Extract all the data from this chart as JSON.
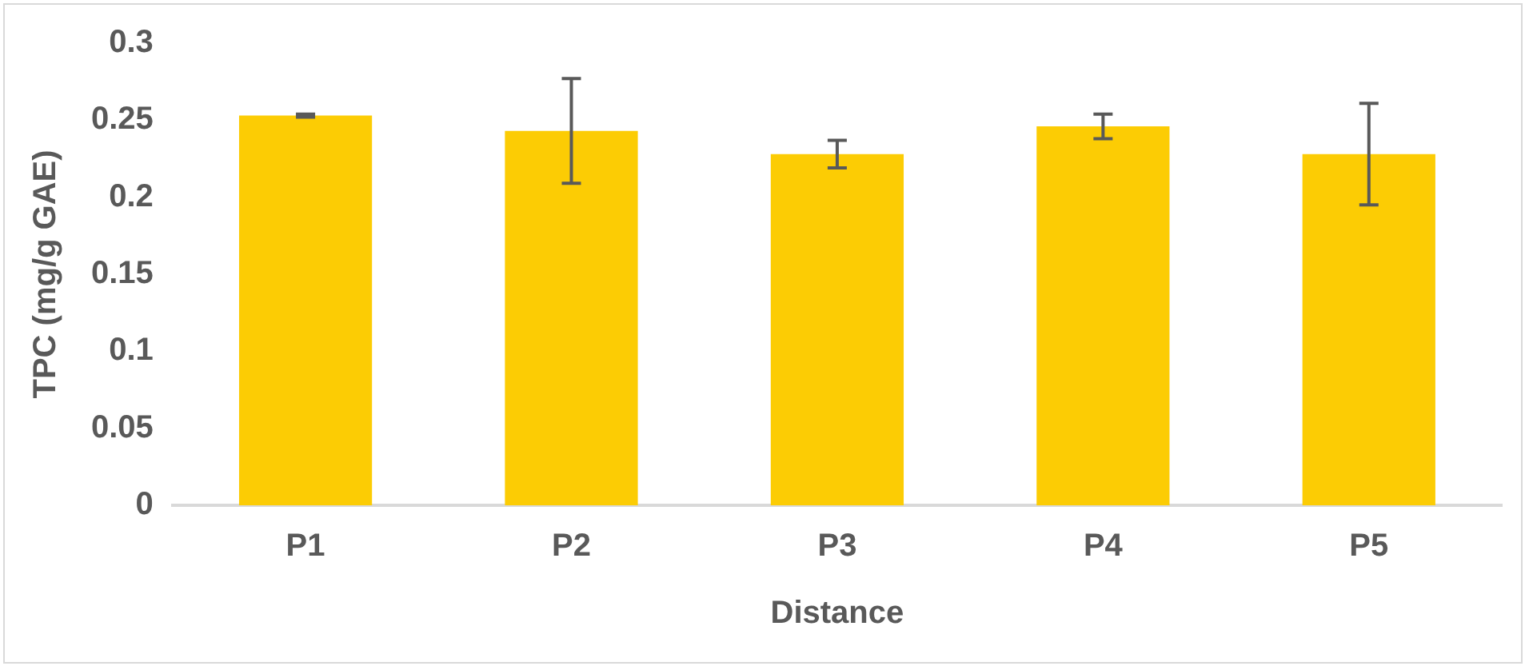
{
  "chart_data": {
    "type": "bar",
    "xlabel": "Distance",
    "ylabel": "TPC (mg/g GAE)",
    "categories": [
      "P1",
      "P2",
      "P3",
      "P4",
      "P5"
    ],
    "values": [
      0.253,
      0.243,
      0.228,
      0.246,
      0.228
    ],
    "errors": [
      0.001,
      0.034,
      0.009,
      0.008,
      0.033
    ],
    "color": "#fccc04",
    "ylim": [
      0,
      0.3
    ],
    "yticks": [
      0,
      0.05,
      0.1,
      0.15,
      0.2,
      0.25,
      0.3
    ],
    "grid": false,
    "legend": false
  }
}
